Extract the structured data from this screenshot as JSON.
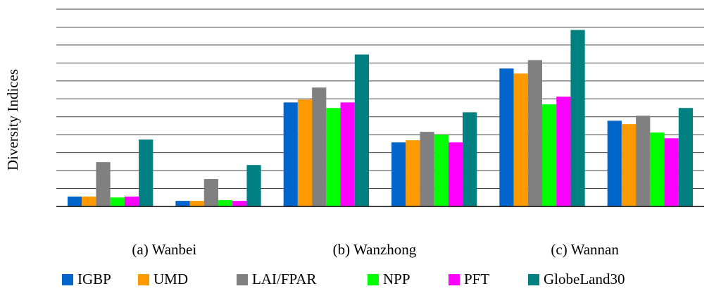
{
  "chart_data": {
    "type": "bar",
    "y_label": "Diversity Indices",
    "categories": [
      null,
      null,
      null,
      null,
      null,
      null
    ],
    "group_labels": [
      "(a) Wanbei",
      "(b) Wanzhong",
      "(c) Wannan"
    ],
    "ylim": [
      0,
      11
    ],
    "yticks": [
      0,
      1,
      2,
      3,
      4,
      5,
      6,
      7,
      8,
      9,
      10,
      11
    ],
    "grid": true,
    "series": [
      {
        "name": "IGBP",
        "color": "#0066cc",
        "values": [
          0.55,
          0.31,
          5.8,
          3.57,
          7.69,
          4.78
        ]
      },
      {
        "name": "UMD",
        "color": "#ff9900",
        "values": [
          0.55,
          0.31,
          5.96,
          3.69,
          7.41,
          4.59
        ]
      },
      {
        "name": "LAI/FPAR",
        "color": "#808080",
        "values": [
          2.47,
          1.53,
          6.63,
          4.16,
          8.16,
          5.06
        ]
      },
      {
        "name": "NPP",
        "color": "#00ff00",
        "values": [
          0.5,
          0.35,
          5.49,
          4.0,
          5.69,
          4.12
        ]
      },
      {
        "name": "PFT",
        "color": "#ff00ff",
        "values": [
          0.55,
          0.31,
          5.8,
          3.57,
          6.12,
          3.8
        ]
      },
      {
        "name": "GlobeLand30",
        "color": "#008080",
        "values": [
          3.73,
          2.31,
          8.47,
          5.25,
          9.84,
          5.49
        ]
      }
    ]
  }
}
